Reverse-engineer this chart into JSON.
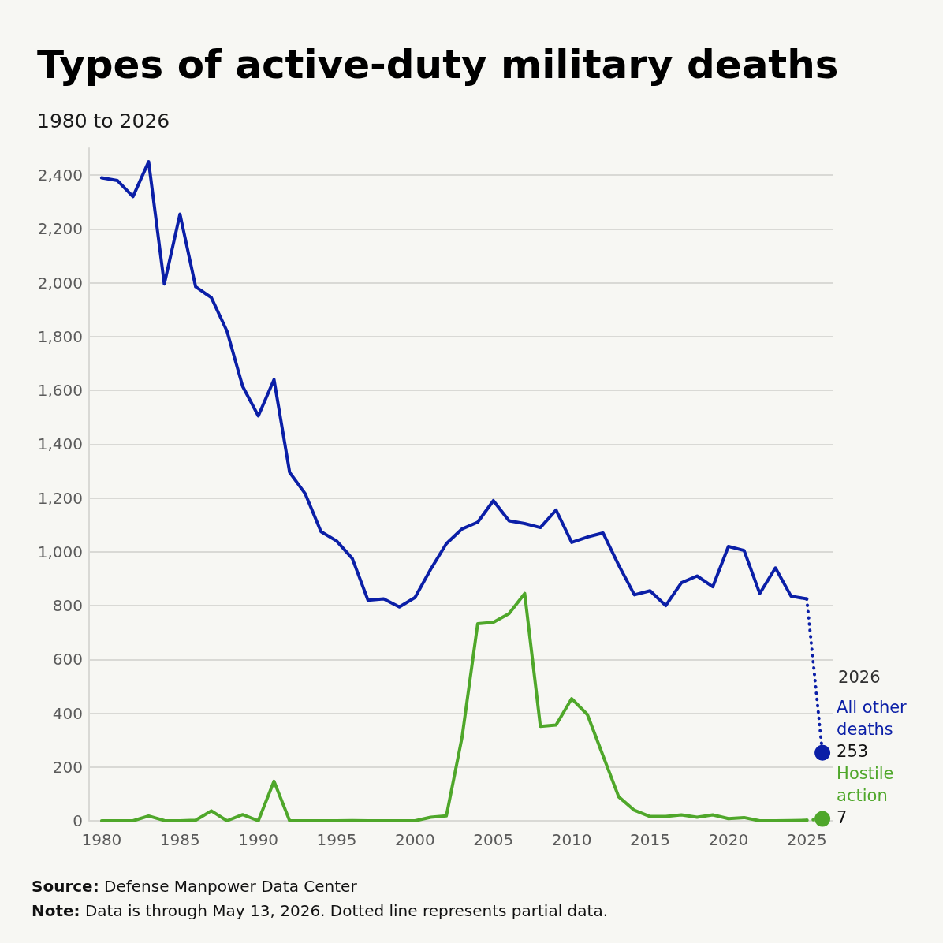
{
  "chart_data": {
    "type": "line",
    "title": "Types of active-duty military deaths",
    "subtitle": "1980 to 2026",
    "x": [
      1980,
      1981,
      1982,
      1983,
      1984,
      1985,
      1986,
      1987,
      1988,
      1989,
      1990,
      1991,
      1992,
      1993,
      1994,
      1995,
      1996,
      1997,
      1998,
      1999,
      2000,
      2001,
      2002,
      2003,
      2004,
      2005,
      2006,
      2007,
      2008,
      2009,
      2010,
      2011,
      2012,
      2013,
      2014,
      2015,
      2016,
      2017,
      2018,
      2019,
      2020,
      2021,
      2022,
      2023,
      2024,
      2025,
      2026
    ],
    "xlim": [
      1979.2,
      2026.7
    ],
    "xticks": [
      1980,
      1985,
      1990,
      1995,
      2000,
      2005,
      2010,
      2015,
      2020,
      2025
    ],
    "ylim": [
      0,
      2500
    ],
    "yticks": [
      0,
      200,
      400,
      600,
      800,
      {
        "value": 1000,
        "label": "1,000"
      },
      {
        "value": 1200,
        "label": "1,200"
      },
      {
        "value": 1400,
        "label": "1,400"
      },
      {
        "value": 1600,
        "label": "1,600"
      },
      {
        "value": 1800,
        "label": "1,800"
      },
      {
        "value": 2000,
        "label": "2,000"
      },
      {
        "value": 2200,
        "label": "2,200"
      },
      {
        "value": 2400,
        "label": "2,400"
      }
    ],
    "grid": "y",
    "legend": false,
    "marker": "none",
    "line_style": "solid",
    "series": [
      {
        "color": "#0b1fa7",
        "values": [
          2390,
          2380,
          2320,
          2450,
          1995,
          2255,
          1985,
          1945,
          1820,
          1615,
          1505,
          1640,
          1295,
          1215,
          1075,
          1040,
          975,
          820,
          825,
          795,
          830,
          935,
          1030,
          1085,
          1110,
          1190,
          1115,
          1105,
          1090,
          1155,
          1035,
          1055,
          1070,
          950,
          840,
          855,
          800,
          885,
          910,
          870,
          1020,
          1005,
          845,
          940,
          835,
          825,
          null
        ]
      },
      {
        "type": "line",
        "line_style": "dotted",
        "color": "#0b1fa7",
        "values": [
          null,
          null,
          null,
          null,
          null,
          null,
          null,
          null,
          null,
          null,
          null,
          null,
          null,
          null,
          null,
          null,
          null,
          null,
          null,
          null,
          null,
          null,
          null,
          null,
          null,
          null,
          null,
          null,
          null,
          null,
          null,
          null,
          null,
          null,
          null,
          null,
          null,
          null,
          null,
          null,
          null,
          null,
          null,
          null,
          null,
          825,
          253
        ]
      },
      {
        "type": "scatter",
        "marker": "circle",
        "name": "All other deaths",
        "color": "#0b1fa7",
        "values": [
          null,
          null,
          null,
          null,
          null,
          null,
          null,
          null,
          null,
          null,
          null,
          null,
          null,
          null,
          null,
          null,
          null,
          null,
          null,
          null,
          null,
          null,
          null,
          null,
          null,
          null,
          null,
          null,
          null,
          null,
          null,
          null,
          null,
          null,
          null,
          null,
          null,
          null,
          null,
          null,
          null,
          null,
          null,
          null,
          null,
          null,
          253
        ],
        "value_labels": [
          null,
          null,
          null,
          null,
          null,
          null,
          null,
          null,
          null,
          null,
          null,
          null,
          null,
          null,
          null,
          null,
          null,
          null,
          null,
          null,
          null,
          null,
          null,
          null,
          null,
          null,
          null,
          null,
          null,
          null,
          null,
          null,
          null,
          null,
          null,
          null,
          null,
          null,
          null,
          null,
          null,
          null,
          null,
          null,
          null,
          null,
          "253"
        ]
      },
      {
        "color": "#4fa72a",
        "values": [
          0,
          0,
          0,
          18,
          1,
          0,
          2,
          37,
          0,
          23,
          0,
          147,
          0,
          0,
          0,
          0,
          1,
          0,
          0,
          0,
          0,
          13,
          18,
          310,
          733,
          738,
          770,
          845,
          351,
          356,
          454,
          395,
          242,
          89,
          39,
          16,
          16,
          22,
          13,
          22,
          8,
          12,
          0,
          0,
          1,
          2,
          null
        ]
      },
      {
        "type": "line",
        "line_style": "dotted",
        "color": "#4fa72a",
        "values": [
          null,
          null,
          null,
          null,
          null,
          null,
          null,
          null,
          null,
          null,
          null,
          null,
          null,
          null,
          null,
          null,
          null,
          null,
          null,
          null,
          null,
          null,
          null,
          null,
          null,
          null,
          null,
          null,
          null,
          null,
          null,
          null,
          null,
          null,
          null,
          null,
          null,
          null,
          null,
          null,
          null,
          null,
          null,
          null,
          null,
          2,
          7
        ]
      },
      {
        "type": "scatter",
        "marker": "circle",
        "name": "Hostile action",
        "color": "#4fa72a",
        "values": [
          null,
          null,
          null,
          null,
          null,
          null,
          null,
          null,
          null,
          null,
          null,
          null,
          null,
          null,
          null,
          null,
          null,
          null,
          null,
          null,
          null,
          null,
          null,
          null,
          null,
          null,
          null,
          null,
          null,
          null,
          null,
          null,
          null,
          null,
          null,
          null,
          null,
          null,
          null,
          null,
          null,
          null,
          null,
          null,
          null,
          null,
          7
        ],
        "value_labels": [
          null,
          null,
          null,
          null,
          null,
          null,
          null,
          null,
          null,
          null,
          null,
          null,
          null,
          null,
          null,
          null,
          null,
          null,
          null,
          null,
          null,
          null,
          null,
          null,
          null,
          null,
          null,
          null,
          null,
          null,
          null,
          null,
          null,
          null,
          null,
          null,
          null,
          null,
          null,
          null,
          null,
          null,
          null,
          null,
          null,
          null,
          "7"
        ]
      }
    ],
    "annotations": [
      "2026",
      "Source: Defense Manpower Data Center",
      "Note: Data is through May 13, 2026. Dotted line represents partial data."
    ]
  }
}
